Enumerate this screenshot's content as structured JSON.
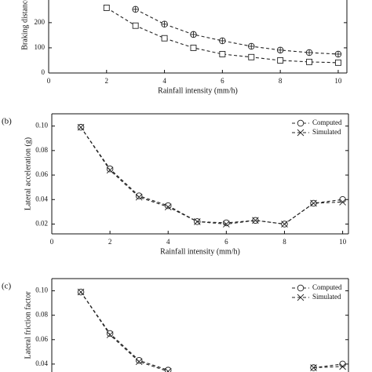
{
  "chart_data": [
    {
      "type": "line",
      "ylabel": "Braking distance",
      "xlabel": "Rainfall intensity (mm/h)",
      "x": [
        1,
        2,
        3,
        4,
        5,
        6,
        7,
        8,
        9,
        10
      ],
      "xlim": [
        0,
        10.3
      ],
      "xticks": [
        0,
        2,
        4,
        6,
        8,
        10
      ],
      "ylim": [
        0,
        290
      ],
      "yticks": [
        0,
        100,
        200
      ],
      "series": [
        {
          "color": "#222",
          "marker": "circle-plus",
          "linestyle": "dashed",
          "values": [
            null,
            null,
            253,
            194,
            153,
            128,
            106,
            91,
            81,
            75
          ]
        },
        {
          "color": "#222",
          "marker": "square",
          "linestyle": "dashed",
          "values": [
            null,
            259,
            188,
            138,
            100,
            75,
            63,
            50,
            44,
            41
          ]
        }
      ]
    },
    {
      "type": "line",
      "panel_label": "(b)",
      "ylabel": "Lateral acceleration (g)",
      "xlabel": "Rainfall intensity (mm/h)",
      "x": [
        1,
        2,
        3,
        4,
        5,
        6,
        7,
        8,
        9,
        10
      ],
      "xlim": [
        0,
        10.2
      ],
      "xticks": [
        0,
        2,
        4,
        6,
        8,
        10
      ],
      "ylim": [
        0.012,
        0.11
      ],
      "yticks": [
        {
          "value": 0.02,
          "label": "0.02"
        },
        {
          "value": 0.04,
          "label": "0.04"
        },
        {
          "value": 0.06,
          "label": "0.06"
        },
        {
          "value": 0.08,
          "label": "0.08"
        },
        {
          "value": 0.1,
          "label": "0.10"
        }
      ],
      "legend": "upper right",
      "series": [
        {
          "name": "Computed",
          "color": "#222",
          "marker": "circle",
          "linestyle": "dashed",
          "values": [
            0.099,
            0.065,
            0.043,
            0.035,
            0.022,
            0.021,
            0.023,
            0.02,
            0.037,
            0.04
          ]
        },
        {
          "name": "Simulated",
          "color": "#222",
          "marker": "cross",
          "linestyle": "dashed",
          "values": [
            0.099,
            0.064,
            0.042,
            0.034,
            0.022,
            0.02,
            0.023,
            0.02,
            0.037,
            0.038
          ]
        }
      ]
    },
    {
      "type": "line",
      "panel_label": "(c)",
      "ylabel": "Lateral friction factor",
      "x": [
        1,
        2,
        3,
        4,
        5,
        6,
        7,
        8,
        9,
        10
      ],
      "xlim": [
        0,
        10.2
      ],
      "ylim": [
        0.0335,
        0.11
      ],
      "yticks": [
        {
          "value": 0.04,
          "label": "0.04"
        },
        {
          "value": 0.06,
          "label": "0.06"
        },
        {
          "value": 0.08,
          "label": "0.08"
        },
        {
          "value": 0.1,
          "label": "0.10"
        }
      ],
      "legend": "upper right",
      "series": [
        {
          "name": "Computed",
          "color": "#222",
          "marker": "circle",
          "linestyle": "dashed",
          "values": [
            0.099,
            0.065,
            0.043,
            0.035,
            null,
            null,
            null,
            null,
            0.037,
            0.04
          ]
        },
        {
          "name": "Simulated",
          "color": "#222",
          "marker": "cross",
          "linestyle": "dashed",
          "values": [
            0.099,
            0.064,
            0.042,
            0.034,
            null,
            null,
            null,
            null,
            0.037,
            0.038
          ]
        }
      ]
    }
  ]
}
